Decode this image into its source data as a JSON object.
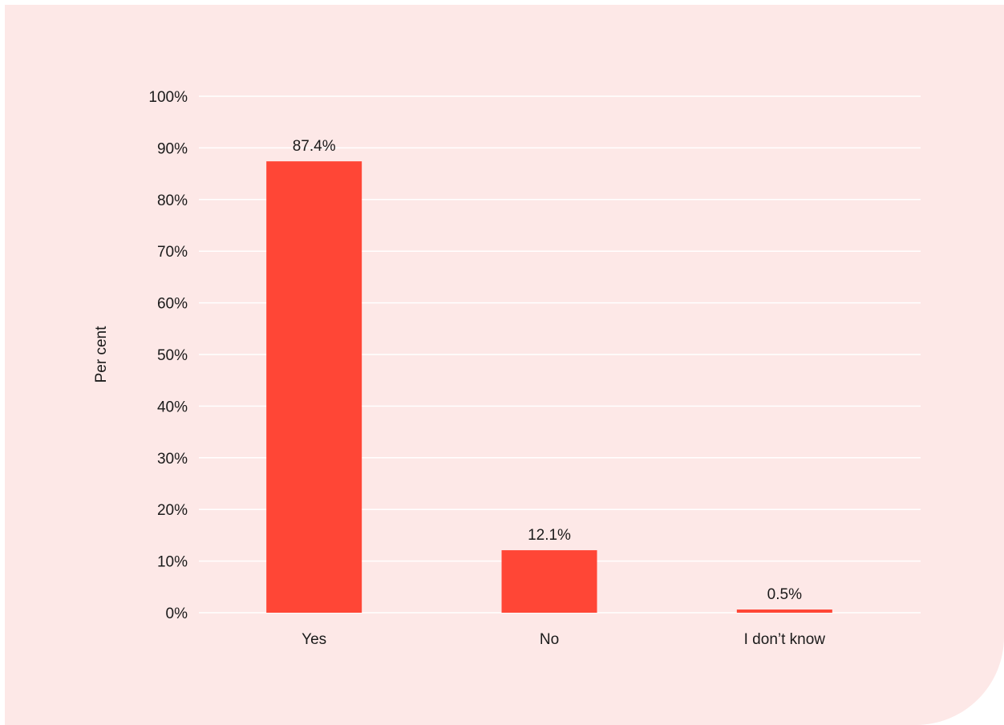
{
  "colors": {
    "panel_background": "#fde8e7",
    "bar": "#ff4636",
    "gridline": "#ffffff"
  },
  "chart_data": {
    "type": "bar",
    "title": "",
    "xlabel": "",
    "ylabel": "Per cent",
    "categories": [
      "Yes",
      "No",
      "I don’t know"
    ],
    "values": [
      87.4,
      12.1,
      0.5
    ],
    "data_labels": [
      "87.4%",
      "12.1%",
      "0.5%"
    ],
    "ylim": [
      0,
      100
    ],
    "yticks": [
      0,
      10,
      20,
      30,
      40,
      50,
      60,
      70,
      80,
      90,
      100
    ],
    "ytick_labels": [
      "0%",
      "10%",
      "20%",
      "30%",
      "40%",
      "50%",
      "60%",
      "70%",
      "80%",
      "90%",
      "100%"
    ],
    "grid": true,
    "legend": "none"
  }
}
